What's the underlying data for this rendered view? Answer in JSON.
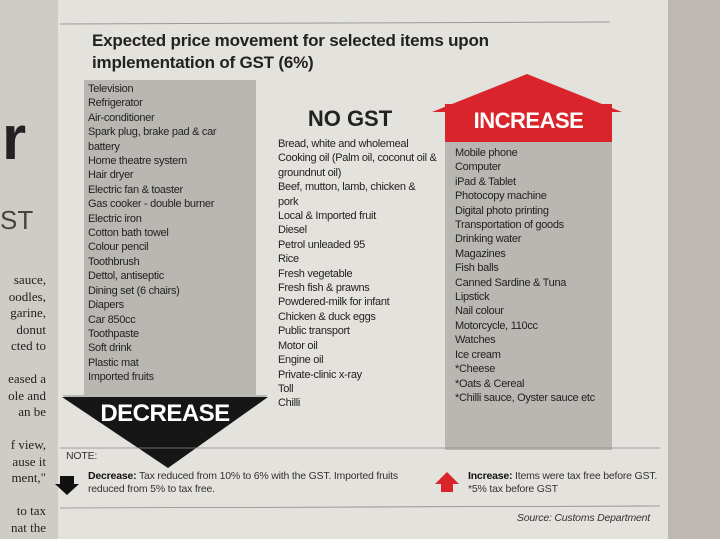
{
  "title": "Expected price movement for selected items upon implementation of GST (6%)",
  "decrease": {
    "label": "DECREASE",
    "items": [
      "Television",
      "Refrigerator",
      "Air-conditioner",
      "Spark plug, brake pad & car battery",
      "Home theatre system",
      "Hair dryer",
      "Electric fan & toaster",
      "Gas cooker - double burner",
      "Electric iron",
      "Cotton bath towel",
      "Colour pencil",
      "Toothbrush",
      "Dettol, antiseptic",
      "Dining set (6 chairs)",
      "Diapers",
      "Car 850cc",
      "Toothpaste",
      "Soft drink",
      "Plastic mat",
      "Imported fruits"
    ]
  },
  "no_gst": {
    "label": "NO GST",
    "items": [
      "Bread, white and wholemeal",
      "Cooking oil (Palm oil, coconut oil & groundnut oil)",
      "Beef, mutton, lamb, chicken & pork",
      "Local & Imported fruit",
      "Diesel",
      "Petrol unleaded 95",
      "Rice",
      "Fresh vegetable",
      "Fresh fish & prawns",
      "Powdered-milk for infant",
      "Chicken & duck eggs",
      "Public transport",
      "Motor oil",
      "Engine oil",
      "Private-clinic x-ray",
      "Toll",
      "Chilli"
    ]
  },
  "increase": {
    "label": "INCREASE",
    "items": [
      "Mobile phone",
      "Computer",
      "iPad & Tablet",
      "Photocopy machine",
      "Digital photo printing",
      "Transportation of goods",
      "Drinking water",
      "Magazines",
      "Fish balls",
      "Canned Sardine & Tuna",
      "Lipstick",
      "Nail colour",
      "Motorcycle, 110cc",
      "Watches",
      "Ice cream",
      "*Cheese",
      "*Oats & Cereal",
      "*Chilli sauce, Oyster sauce etc"
    ]
  },
  "note": {
    "label": "NOTE:",
    "decrease_title": "Decrease:",
    "decrease_text": "Tax reduced from 10% to 6% with the GST. Imported fruits reduced from 5% to tax free.",
    "increase_title": "Increase:",
    "increase_text": "Items were tax free before GST. *5% tax before GST"
  },
  "source": "Source: Customs Department",
  "adjacent": {
    "headline": "r",
    "subhead": "ST",
    "lines": [
      "sauce,",
      "oodles,",
      "garine,",
      "donut",
      "cted to",
      "",
      "eased a",
      "ole and",
      "an be",
      "",
      "f view,",
      "ause it",
      "ment,\"",
      "",
      "to tax",
      "nat the"
    ]
  }
}
